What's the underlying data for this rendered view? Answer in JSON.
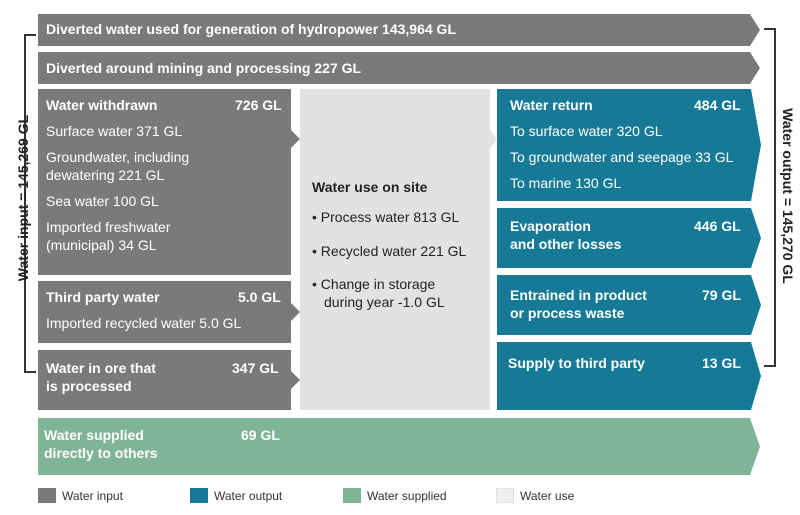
{
  "top_rows": {
    "hydropower": "Diverted water used for generation of hydropower 143,964 GL",
    "mining": "Diverted around mining and processing 227 GL"
  },
  "input": {
    "withdrawn": {
      "title": "Water withdrawn",
      "value": "726 GL",
      "items": [
        "Surface water 371 GL",
        "Groundwater, including",
        "dewatering 221 GL",
        "Sea water 100 GL",
        "Imported freshwater",
        "(municipal) 34 GL"
      ]
    },
    "third_party": {
      "title": "Third party water",
      "value": "5.0 GL",
      "items": [
        "Imported recycled water 5.0 GL"
      ]
    },
    "ore": {
      "title_line1": "Water in ore that",
      "title_line2": "is processed",
      "value": "347 GL"
    }
  },
  "use": {
    "title": "Water use on site",
    "items": [
      "• Process water 813 GL",
      "• Recycled water 221 GL",
      "• Change in storage",
      "during year -1.0 GL"
    ]
  },
  "output": {
    "return": {
      "title": "Water return",
      "value": "484 GL",
      "items": [
        "To surface water 320 GL",
        "To groundwater and seepage 33 GL",
        "To marine 130 GL"
      ]
    },
    "evaporation": {
      "title_line1": "Evaporation",
      "title_line2": "and other losses",
      "value": "446 GL"
    },
    "entrained": {
      "title_line1": "Entrained in product",
      "title_line2": "or process waste",
      "value": "79 GL"
    },
    "supply_third": {
      "title": "Supply to third party",
      "value": "13 GL"
    }
  },
  "supplied": {
    "title_line1": "Water supplied",
    "title_line2": "directly to others",
    "value": "69 GL"
  },
  "side": {
    "left": "Water input = 145,269 GL",
    "right": "Water output = 145,270 GL"
  },
  "legend": {
    "input": "Water input",
    "output": "Water output",
    "supplied": "Water supplied",
    "use": "Water use"
  },
  "colors": {
    "input": "#7a7a7a",
    "output": "#167a97",
    "supplied": "#7fb497",
    "use": "#e2e2e2"
  }
}
